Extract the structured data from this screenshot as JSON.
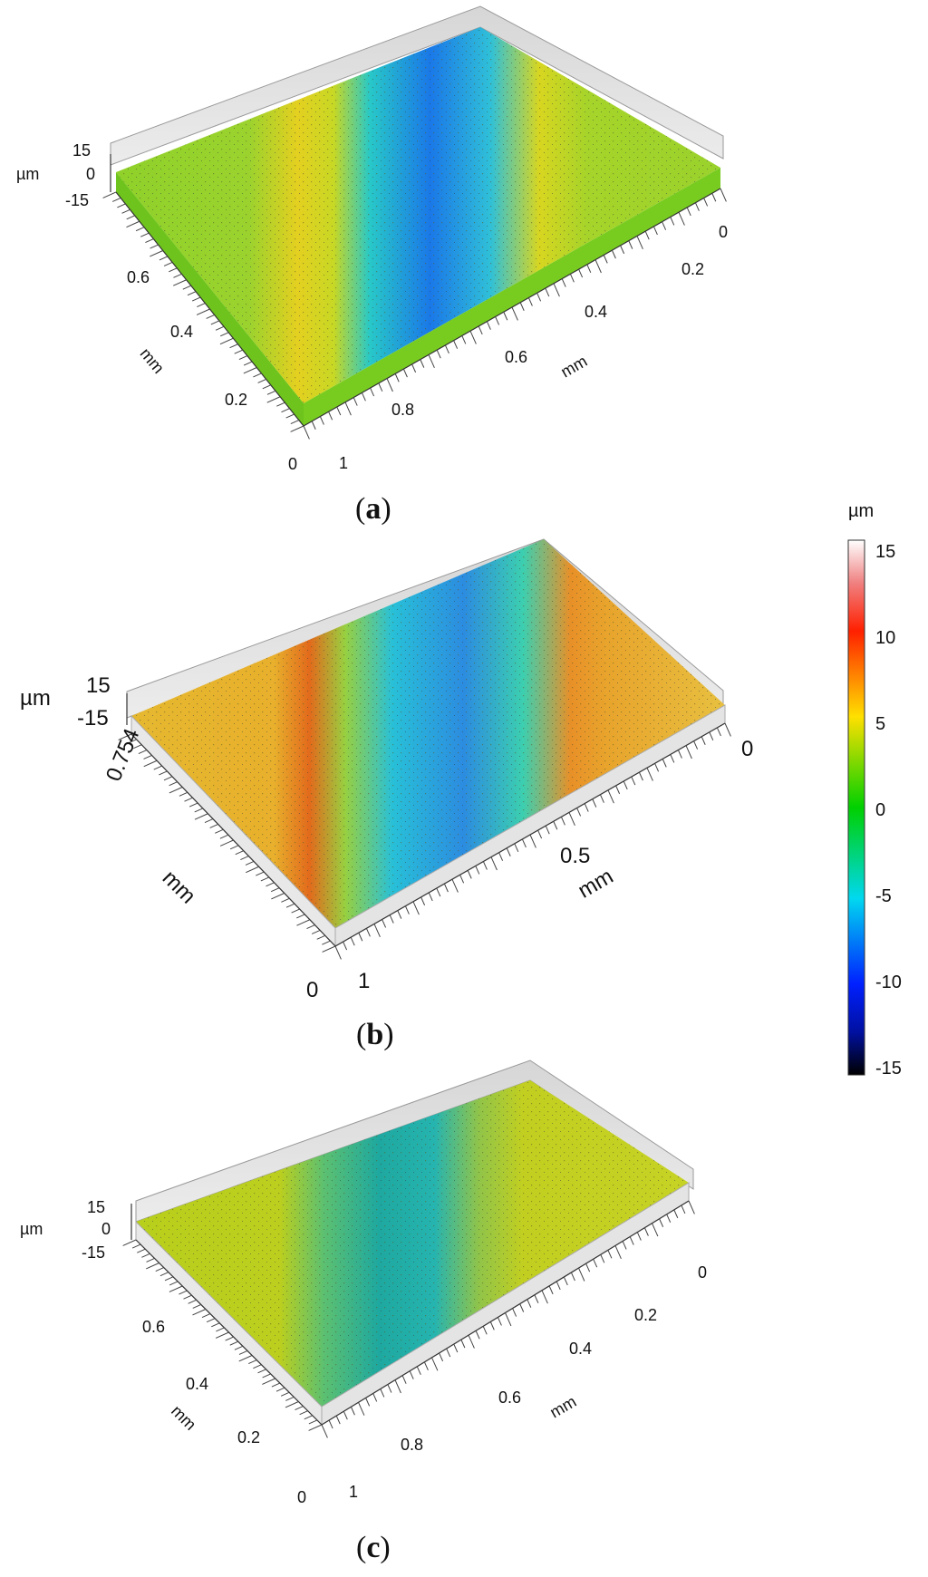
{
  "figure": {
    "panels": [
      {
        "id": "a",
        "caption_letter": "a",
        "z_unit": "µm",
        "z_ticks": [
          "15",
          "0",
          "-15"
        ],
        "y_unit": "mm",
        "y_ticks": [
          "0.6",
          "0.4",
          "0.2",
          "0"
        ],
        "x_unit": "mm",
        "x_ticks": [
          "1",
          "0.8",
          "0.6",
          "0.4",
          "0.2",
          "0"
        ]
      },
      {
        "id": "b",
        "caption_letter": "b",
        "z_unit": "µm",
        "z_ticks": [
          "15",
          "-15"
        ],
        "y_unit": "mm",
        "y_ticks": [
          "0.754",
          "0"
        ],
        "x_unit": "mm",
        "x_ticks": [
          "1",
          "0.5",
          "0"
        ]
      },
      {
        "id": "c",
        "caption_letter": "c",
        "z_unit": "µm",
        "z_ticks": [
          "15",
          "0",
          "-15"
        ],
        "y_unit": "mm",
        "y_ticks": [
          "0.6",
          "0.4",
          "0.2",
          "0"
        ],
        "x_unit": "mm",
        "x_ticks": [
          "1",
          "0.8",
          "0.6",
          "0.4",
          "0.2",
          "0"
        ]
      }
    ],
    "colorbar": {
      "unit": "µm",
      "ticks": [
        "15",
        "10",
        "5",
        "0",
        "-5",
        "-10",
        "-15"
      ],
      "colors": [
        "#ffffff",
        "#ff2000",
        "#ffe000",
        "#00d000",
        "#00d8f0",
        "#0020ff",
        "#000000"
      ]
    }
  }
}
